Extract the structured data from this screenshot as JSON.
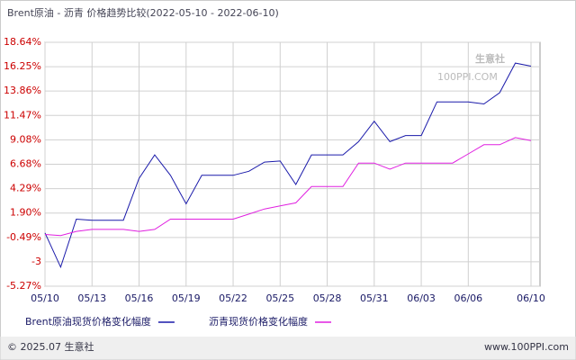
{
  "chart_data": {
    "type": "line",
    "title": "Brent原油 - 沥青 价格趋势比较(2022-05-10 - 2022-06-10)",
    "x": [
      "05/10",
      "05/11",
      "05/12",
      "05/13",
      "05/14",
      "05/15",
      "05/16",
      "05/17",
      "05/18",
      "05/19",
      "05/20",
      "05/21",
      "05/22",
      "05/23",
      "05/24",
      "05/25",
      "05/26",
      "05/27",
      "05/28",
      "05/29",
      "05/30",
      "05/31",
      "06/01",
      "06/02",
      "06/03",
      "06/04",
      "06/05",
      "06/06",
      "06/07",
      "06/08",
      "06/09",
      "06/10"
    ],
    "series": [
      {
        "name": "Brent原油现货价格变化幅度",
        "color": "#1a1aaa",
        "values": [
          -0.05,
          -3.4,
          1.3,
          1.2,
          1.2,
          1.2,
          5.3,
          7.6,
          5.6,
          2.8,
          5.6,
          5.6,
          5.6,
          6.0,
          6.9,
          7.0,
          4.7,
          7.6,
          7.6,
          7.6,
          8.9,
          10.9,
          8.9,
          9.5,
          9.5,
          12.8,
          12.8,
          12.8,
          12.6,
          13.7,
          16.6,
          16.3
        ]
      },
      {
        "name": "沥青现货价格变化幅度",
        "color": "#e020e0",
        "values": [
          -0.2,
          -0.3,
          0.1,
          0.3,
          0.3,
          0.3,
          0.1,
          0.3,
          1.3,
          1.3,
          1.3,
          1.3,
          1.3,
          1.8,
          2.3,
          2.6,
          2.9,
          4.5,
          4.5,
          4.5,
          6.8,
          6.8,
          6.2,
          6.8,
          6.8,
          6.8,
          6.8,
          7.7,
          8.6,
          8.6,
          9.3,
          9.0
        ]
      }
    ],
    "xlim": [
      "05/10",
      "06/10"
    ],
    "xticks": [
      "05/10",
      "05/13",
      "05/16",
      "05/19",
      "05/22",
      "05/25",
      "05/28",
      "05/31",
      "06/03",
      "06/06",
      "06/10"
    ],
    "ylim": [
      -5.27,
      18.64
    ],
    "yticks": [
      {
        "value": 18.64,
        "label": "18.64%"
      },
      {
        "value": 16.25,
        "label": "16.25%"
      },
      {
        "value": 13.86,
        "label": "13.86%"
      },
      {
        "value": 11.47,
        "label": "11.47%"
      },
      {
        "value": 9.08,
        "label": "9.08%"
      },
      {
        "value": 6.68,
        "label": "6.68%"
      },
      {
        "value": 4.29,
        "label": "4.29%"
      },
      {
        "value": 1.9,
        "label": "1.90%"
      },
      {
        "value": -0.49,
        "label": "-0.49%"
      },
      {
        "value": -2.88,
        "label": "-3"
      },
      {
        "value": -5.27,
        "label": "-5.27%"
      }
    ],
    "grid": true,
    "watermark": {
      "name": "生意社",
      "site": "100PPI.COM"
    },
    "footer": {
      "copyright": "© 2025.07 生意社",
      "site": "www.100PPI.com"
    }
  }
}
